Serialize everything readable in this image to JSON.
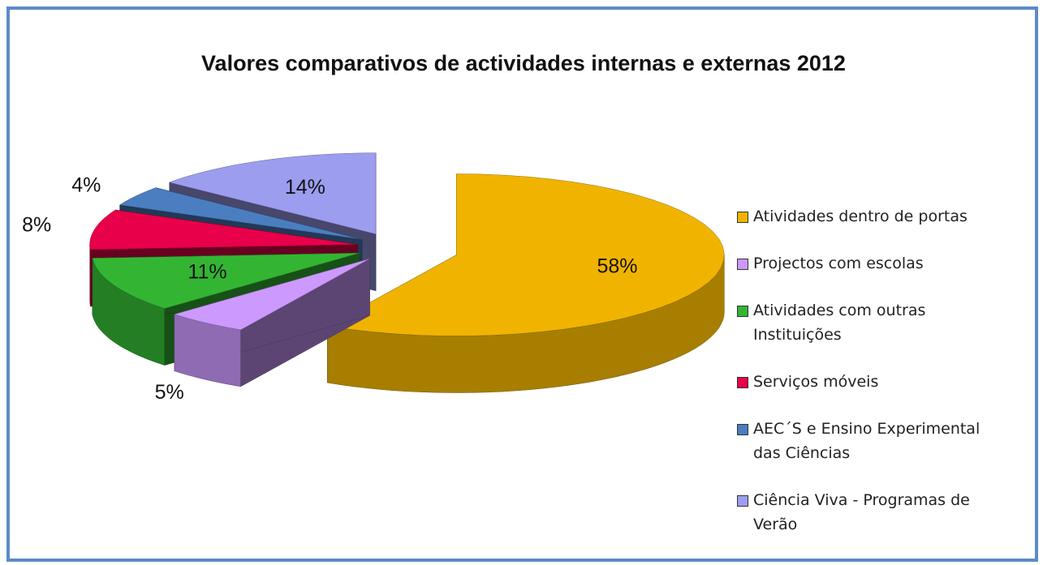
{
  "chart_data": {
    "type": "pie",
    "title": "Valores comparativos de actividades internas e externas 2012",
    "categories": [
      "Atividades dentro de portas",
      "Projectos com escolas",
      "Atividades com outras Instituições",
      "Serviços móveis",
      "AEC´S e Ensino Experimental das Ciências",
      "Ciência Viva - Programas de Verão"
    ],
    "values": [
      58,
      5,
      11,
      8,
      4,
      14
    ],
    "value_labels": [
      "58%",
      "5%",
      "11%",
      "8%",
      "4%",
      "14%"
    ],
    "colors": [
      "#f0b400",
      "#cc99ff",
      "#33b533",
      "#e8004a",
      "#4a7ec0",
      "#9d9df0"
    ],
    "legend": "right"
  }
}
